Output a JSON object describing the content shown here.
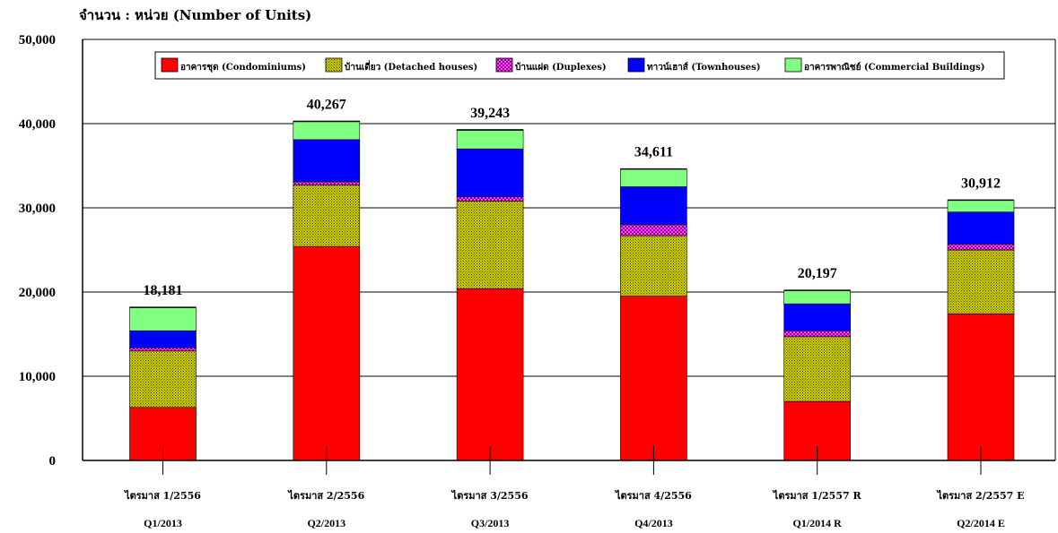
{
  "chart_data": {
    "type": "bar",
    "stacked": true,
    "ylabel": "จำนวน : หน่วย (Number of Units)",
    "ylim": [
      0,
      50000
    ],
    "yticks": [
      "0",
      "10,000",
      "20,000",
      "30,000",
      "40,000",
      "50,000"
    ],
    "ytick_values": [
      0,
      10000,
      20000,
      30000,
      40000,
      50000
    ],
    "legend_position": "top",
    "categories_th": [
      "ไตรมาส 1/2556",
      "ไตรมาส 2/2556",
      "ไตรมาส 3/2556",
      "ไตรมาส 4/2556",
      "ไตรมาส 1/2557 R",
      "ไตรมาส 2/2557 E"
    ],
    "categories_en": [
      "Q1/2013",
      "Q2/2013",
      "Q3/2013",
      "Q4/2013",
      "Q1/2014 R",
      "Q2/2014 E"
    ],
    "totals": [
      18181,
      40267,
      39243,
      34611,
      20197,
      30912
    ],
    "total_labels": [
      "18,181",
      "40,267",
      "39,243",
      "34,611",
      "20,197",
      "30,912"
    ],
    "series": [
      {
        "name": "อาคารชุด (Condominiums)",
        "color": "#ff0000",
        "pattern": "solid",
        "values": [
          6300,
          25400,
          20400,
          19500,
          7000,
          17400
        ]
      },
      {
        "name": "บ้านเดี่ยว (Detached houses)",
        "color": "#b5b800",
        "pattern": "dots-dark",
        "values": [
          6700,
          7300,
          10400,
          7200,
          7700,
          7600
        ]
      },
      {
        "name": "บ้านแฝด (Duplexes)",
        "color": "#e000e0",
        "pattern": "checker",
        "values": [
          400,
          400,
          500,
          1300,
          700,
          700
        ]
      },
      {
        "name": "ทาวน์เฮาส์ (Townhouses)",
        "color": "#0000ff",
        "pattern": "solid",
        "values": [
          2000,
          5000,
          5700,
          4500,
          3200,
          3800
        ]
      },
      {
        "name": "อาคารพาณิชย์ (Commercial Buildings)",
        "color": "#80ff80",
        "pattern": "solid",
        "values": [
          2800,
          2200,
          2300,
          2100,
          1600,
          1400
        ]
      }
    ]
  }
}
